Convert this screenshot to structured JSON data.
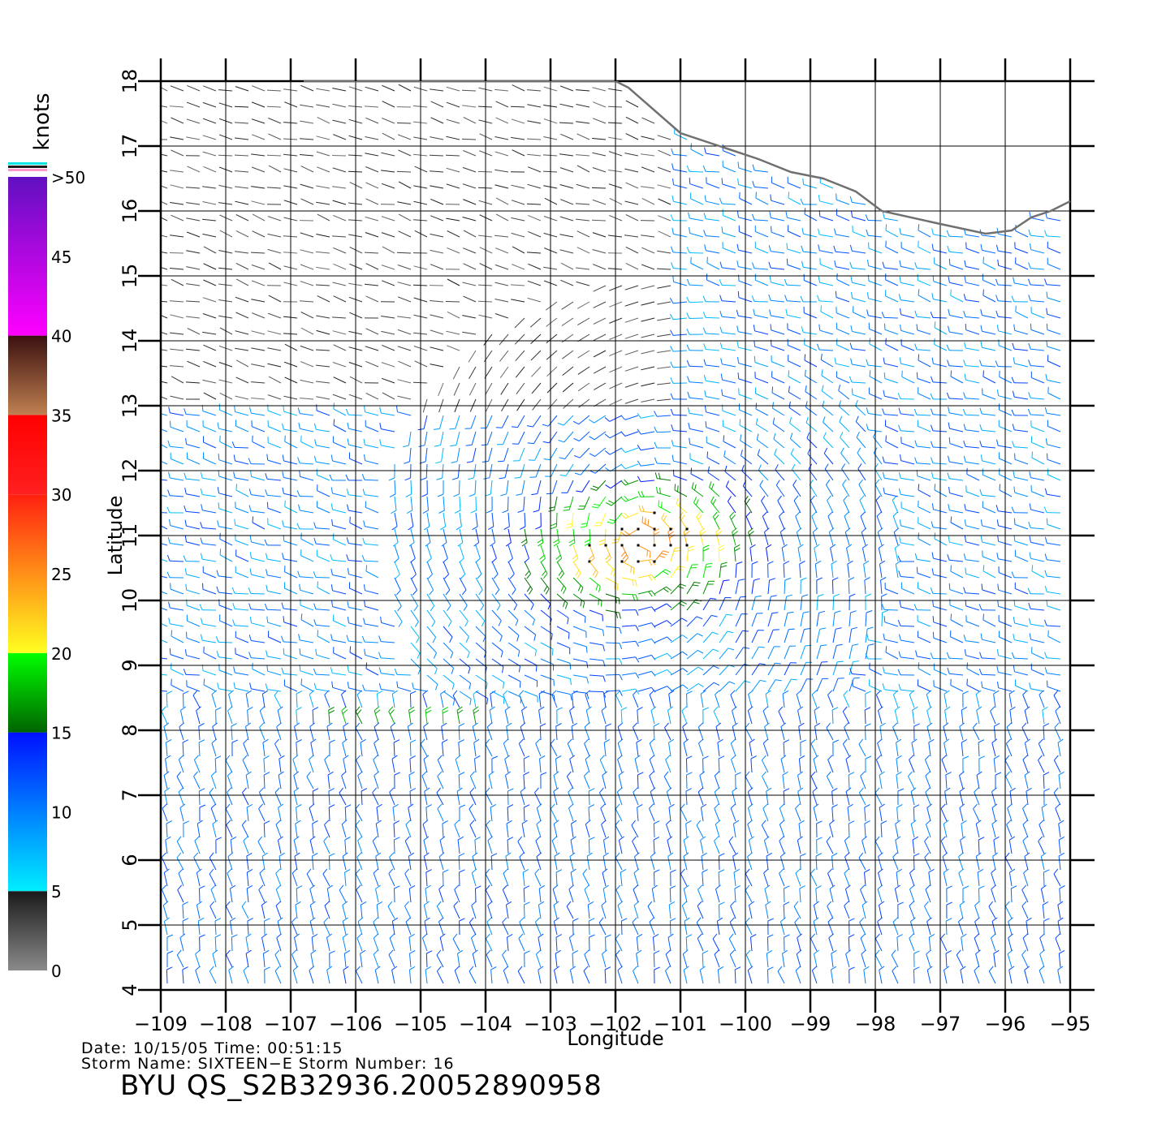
{
  "chart_data": {
    "type": "wind_barb_map",
    "xlabel": "Longitude",
    "ylabel": "Latitude",
    "xlim": [
      -109,
      -95
    ],
    "ylim": [
      4,
      18
    ],
    "x_ticks": [
      "-109",
      "-108",
      "-107",
      "-106",
      "-105",
      "-104",
      "-103",
      "-102",
      "-101",
      "-100",
      "-99",
      "-98",
      "-97",
      "-96",
      "-95"
    ],
    "y_ticks": [
      "4",
      "5",
      "6",
      "7",
      "8",
      "9",
      "10",
      "11",
      "12",
      "13",
      "14",
      "15",
      "16",
      "17",
      "18"
    ],
    "grid": true,
    "colorbar": {
      "title": "knots",
      "labels": [
        "0",
        "5",
        "10",
        "15",
        "20",
        "25",
        "30",
        "35",
        "40",
        "45",
        ">50"
      ],
      "bands": [
        {
          "range": [
            0,
            5
          ],
          "colors": [
            "#8a8a8a",
            "#1a1a1a"
          ]
        },
        {
          "range": [
            5,
            15
          ],
          "colors": [
            "#00eeff",
            "#0010ff"
          ]
        },
        {
          "range": [
            15,
            20
          ],
          "colors": [
            "#006400",
            "#00ff00"
          ]
        },
        {
          "range": [
            20,
            30
          ],
          "colors": [
            "#ffff20",
            "#ff2010"
          ]
        },
        {
          "range": [
            30,
            35
          ],
          "colors": [
            "#ff2020",
            "#ff0000"
          ]
        },
        {
          "range": [
            35,
            40
          ],
          "colors": [
            "#c08050",
            "#3a1010"
          ]
        },
        {
          "range": [
            40,
            50
          ],
          "colors": [
            "#ff00ff",
            "#6010c0"
          ]
        }
      ]
    },
    "coastline": [
      [
        -106.8,
        18.0
      ],
      [
        -104.0,
        18.0
      ],
      [
        -102.0,
        18.0
      ],
      [
        -101.8,
        17.9
      ],
      [
        -101.0,
        17.2
      ],
      [
        -100.4,
        17.0
      ],
      [
        -99.8,
        16.8
      ],
      [
        -99.3,
        16.6
      ],
      [
        -98.8,
        16.5
      ],
      [
        -98.3,
        16.3
      ],
      [
        -97.9,
        16.0
      ],
      [
        -97.0,
        15.8
      ],
      [
        -96.3,
        15.65
      ],
      [
        -95.9,
        15.7
      ],
      [
        -95.6,
        15.9
      ],
      [
        -95.3,
        16.0
      ],
      [
        -95.1,
        16.1
      ],
      [
        -95.0,
        16.15
      ]
    ],
    "storm_center": {
      "lon": -101.6,
      "lat": 10.9
    },
    "wind_field_regions": [
      {
        "description": "calm (0-5 kt) near coast",
        "lon": [
          -109,
          -101
        ],
        "lat": [
          13.0,
          18.0
        ],
        "speed_knots": 3
      },
      {
        "description": "core",
        "lon": [
          -104.5,
          -99.5
        ],
        "lat": [
          9.3,
          12.0
        ],
        "speed_knots": 27
      },
      {
        "description": "ambient",
        "lon": [
          -109,
          -95
        ],
        "lat": [
          4,
          18
        ],
        "speed_knots": 10
      }
    ]
  },
  "footer": {
    "date_line": "Date: 10/15/05   Time: 00:51:15",
    "storm_line": "Storm Name: SIXTEEN−E   Storm Number: 16",
    "product": "BYU  QS_S2B32936.20052890958"
  }
}
